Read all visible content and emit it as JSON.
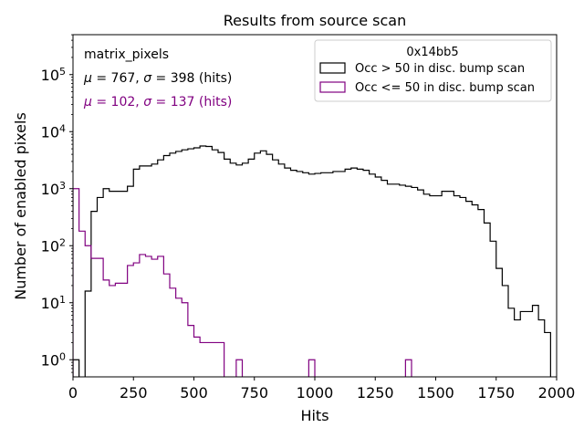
{
  "chart_data": {
    "type": "histogram-step",
    "title": "Results from source scan",
    "xlabel": "Hits",
    "ylabel": "Number of enabled pixels",
    "xscale": "linear",
    "yscale": "log",
    "xlim": [
      0,
      2000
    ],
    "ylim_log10": [
      -0.3,
      5.7
    ],
    "x_ticks": [
      {
        "value": 0,
        "label": "0"
      },
      {
        "value": 250,
        "label": "250"
      },
      {
        "value": 500,
        "label": "500"
      },
      {
        "value": 750,
        "label": "750"
      },
      {
        "value": 1000,
        "label": "1000"
      },
      {
        "value": 1250,
        "label": "1250"
      },
      {
        "value": 1500,
        "label": "1500"
      },
      {
        "value": 1750,
        "label": "1750"
      },
      {
        "value": 2000,
        "label": "2000"
      }
    ],
    "y_ticks": [
      {
        "exp": 0,
        "base": "10",
        "sup": "0"
      },
      {
        "exp": 1,
        "base": "10",
        "sup": "1"
      },
      {
        "exp": 2,
        "base": "10",
        "sup": "2"
      },
      {
        "exp": 3,
        "base": "10",
        "sup": "3"
      },
      {
        "exp": 4,
        "base": "10",
        "sup": "4"
      },
      {
        "exp": 5,
        "base": "10",
        "sup": "5"
      }
    ],
    "bin_width": 25,
    "legend": {
      "title": "0x14bb5",
      "position": "top-right",
      "entries": [
        {
          "label": "Occ > 50 in disc. bump scan",
          "color": "#000000"
        },
        {
          "label": "Occ <= 50 in disc. bump scan",
          "color": "#800080"
        }
      ]
    },
    "annotations": [
      {
        "text": "matrix_pixels",
        "color": "#000000",
        "mu": "",
        "sigma": "",
        "unit": ""
      },
      {
        "text": "",
        "color": "#000000",
        "mu": "767",
        "sigma": "398",
        "unit": " (hits)"
      },
      {
        "text": "",
        "color": "#800080",
        "mu": "102",
        "sigma": "137",
        "unit": " (hits)"
      }
    ],
    "series": [
      {
        "name": "Occ > 50 in disc. bump scan",
        "color": "#000000",
        "bins": [
          [
            0,
            1
          ],
          [
            25,
            0
          ],
          [
            50,
            16
          ],
          [
            75,
            400
          ],
          [
            100,
            700
          ],
          [
            125,
            1000
          ],
          [
            150,
            900
          ],
          [
            175,
            900
          ],
          [
            200,
            900
          ],
          [
            225,
            1100
          ],
          [
            250,
            2200
          ],
          [
            275,
            2500
          ],
          [
            300,
            2500
          ],
          [
            325,
            2700
          ],
          [
            350,
            3200
          ],
          [
            375,
            3800
          ],
          [
            400,
            4200
          ],
          [
            425,
            4500
          ],
          [
            450,
            4800
          ],
          [
            475,
            5000
          ],
          [
            500,
            5200
          ],
          [
            525,
            5600
          ],
          [
            550,
            5500
          ],
          [
            575,
            4800
          ],
          [
            600,
            4300
          ],
          [
            625,
            3300
          ],
          [
            650,
            2800
          ],
          [
            675,
            2600
          ],
          [
            700,
            2800
          ],
          [
            725,
            3300
          ],
          [
            750,
            4200
          ],
          [
            775,
            4600
          ],
          [
            800,
            4000
          ],
          [
            825,
            3200
          ],
          [
            850,
            2700
          ],
          [
            875,
            2300
          ],
          [
            900,
            2100
          ],
          [
            925,
            2000
          ],
          [
            950,
            1900
          ],
          [
            975,
            1800
          ],
          [
            1000,
            1850
          ],
          [
            1025,
            1900
          ],
          [
            1050,
            1900
          ],
          [
            1075,
            2000
          ],
          [
            1100,
            2000
          ],
          [
            1125,
            2200
          ],
          [
            1150,
            2300
          ],
          [
            1175,
            2200
          ],
          [
            1200,
            2100
          ],
          [
            1225,
            1800
          ],
          [
            1250,
            1600
          ],
          [
            1275,
            1400
          ],
          [
            1300,
            1200
          ],
          [
            1325,
            1200
          ],
          [
            1350,
            1150
          ],
          [
            1375,
            1100
          ],
          [
            1400,
            1050
          ],
          [
            1425,
            950
          ],
          [
            1450,
            800
          ],
          [
            1475,
            750
          ],
          [
            1500,
            750
          ],
          [
            1525,
            900
          ],
          [
            1550,
            900
          ],
          [
            1575,
            750
          ],
          [
            1600,
            700
          ],
          [
            1625,
            600
          ],
          [
            1650,
            520
          ],
          [
            1675,
            430
          ],
          [
            1700,
            250
          ],
          [
            1725,
            120
          ],
          [
            1750,
            40
          ],
          [
            1775,
            20
          ],
          [
            1800,
            8
          ],
          [
            1825,
            5
          ],
          [
            1850,
            7
          ],
          [
            1875,
            7
          ],
          [
            1900,
            9
          ],
          [
            1925,
            5
          ],
          [
            1950,
            3
          ],
          [
            1975,
            0
          ]
        ]
      },
      {
        "name": "Occ <= 50 in disc. bump scan",
        "color": "#800080",
        "bins": [
          [
            0,
            1000
          ],
          [
            25,
            180
          ],
          [
            50,
            100
          ],
          [
            75,
            60
          ],
          [
            100,
            60
          ],
          [
            125,
            25
          ],
          [
            150,
            20
          ],
          [
            175,
            22
          ],
          [
            200,
            22
          ],
          [
            225,
            45
          ],
          [
            250,
            50
          ],
          [
            275,
            70
          ],
          [
            300,
            65
          ],
          [
            325,
            58
          ],
          [
            350,
            65
          ],
          [
            375,
            32
          ],
          [
            400,
            18
          ],
          [
            425,
            12
          ],
          [
            450,
            10
          ],
          [
            475,
            4
          ],
          [
            500,
            2.5
          ],
          [
            525,
            2
          ],
          [
            550,
            2
          ],
          [
            575,
            2
          ],
          [
            600,
            2
          ],
          [
            625,
            0
          ],
          [
            650,
            0
          ],
          [
            675,
            1
          ],
          [
            700,
            0
          ],
          [
            725,
            0
          ],
          [
            750,
            0
          ],
          [
            775,
            0
          ],
          [
            800,
            0
          ],
          [
            825,
            0
          ],
          [
            850,
            0
          ],
          [
            875,
            0
          ],
          [
            900,
            0
          ],
          [
            925,
            0
          ],
          [
            950,
            0
          ],
          [
            975,
            1
          ],
          [
            1000,
            0
          ],
          [
            1025,
            0
          ],
          [
            1050,
            0
          ],
          [
            1075,
            0
          ],
          [
            1100,
            0
          ],
          [
            1125,
            0
          ],
          [
            1150,
            0
          ],
          [
            1175,
            0
          ],
          [
            1200,
            0
          ],
          [
            1225,
            0
          ],
          [
            1250,
            0
          ],
          [
            1275,
            0
          ],
          [
            1300,
            0
          ],
          [
            1325,
            0
          ],
          [
            1350,
            0
          ],
          [
            1375,
            1
          ],
          [
            1400,
            0
          ]
        ]
      }
    ]
  }
}
